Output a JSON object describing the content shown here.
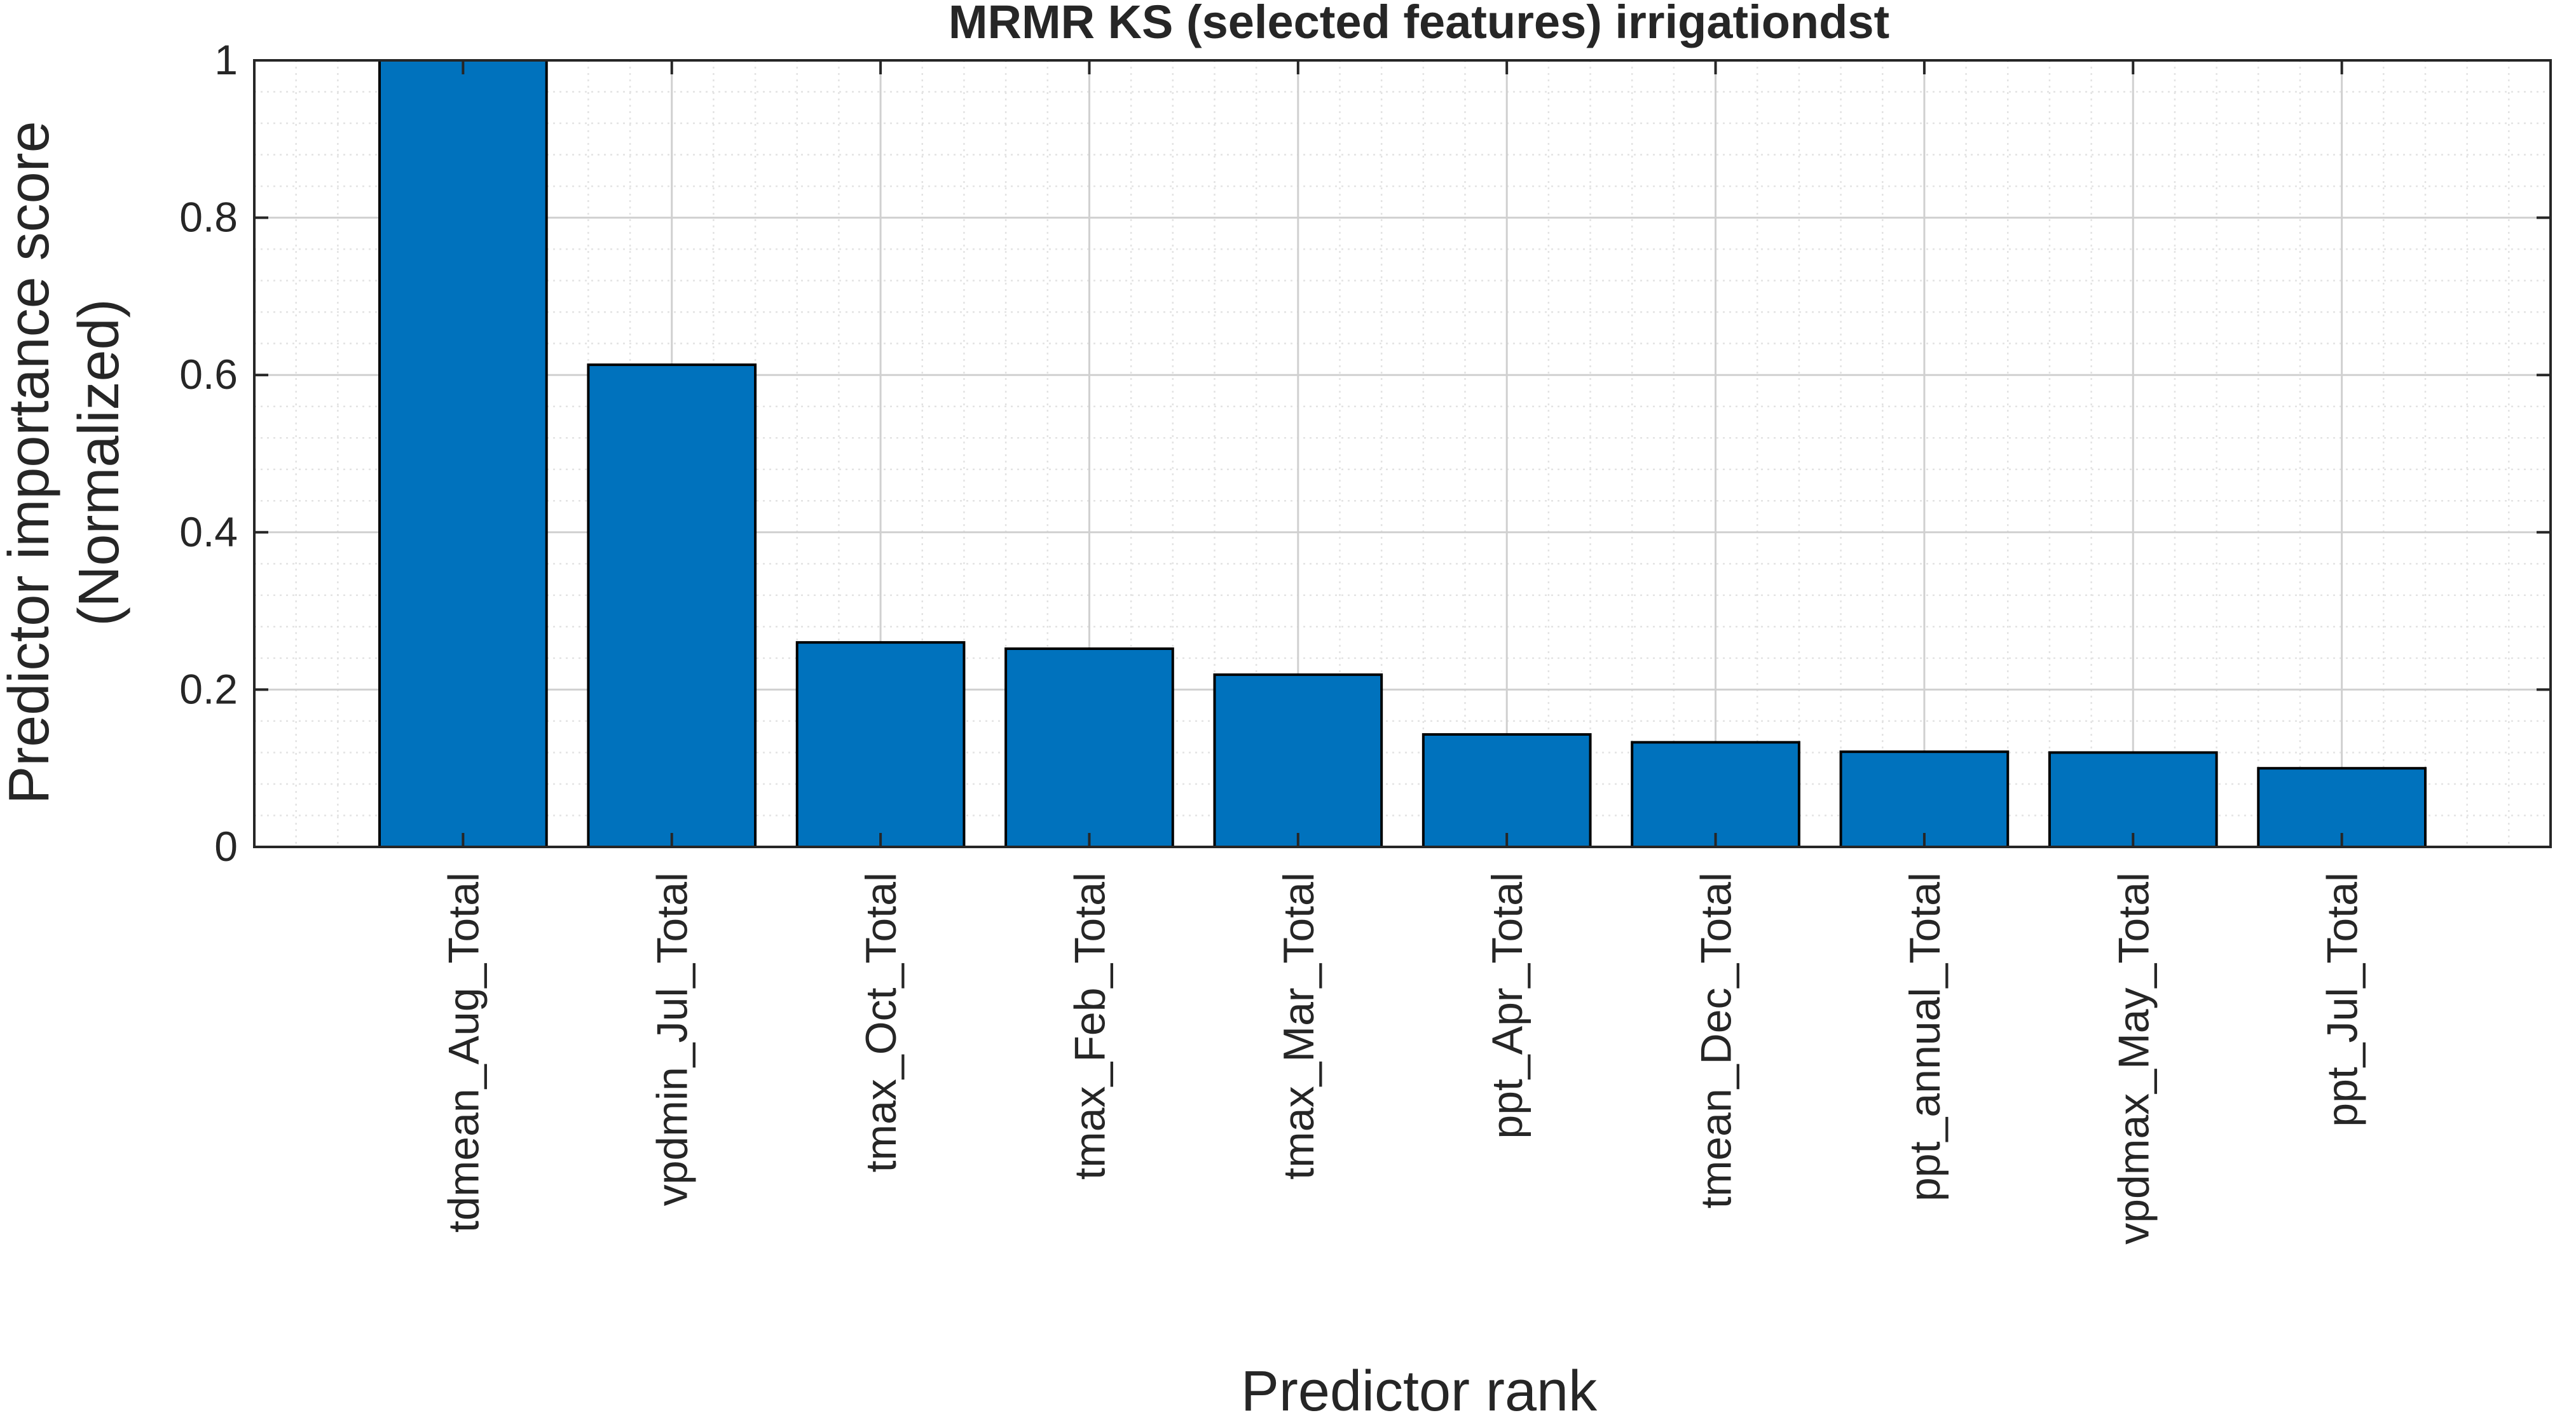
{
  "chart_data": {
    "type": "bar",
    "title": "MRMR KS (selected features) irrigationdst",
    "xlabel": "Predictor rank",
    "ylabel_line1": "Predictor importance score",
    "ylabel_line2": "(Normalized)",
    "categories": [
      "tdmean_Aug_Total",
      "vpdmin_Jul_Total",
      "tmax_Oct_Total",
      "tmax_Feb_Total",
      "tmax_Mar_Total",
      "ppt_Apr_Total",
      "tmean_Dec_Total",
      "ppt_annual_Total",
      "vpdmax_May_Total",
      "ppt_Jul_Total"
    ],
    "values": [
      1.0,
      0.613,
      0.26,
      0.252,
      0.219,
      0.143,
      0.133,
      0.121,
      0.12,
      0.1
    ],
    "xlim": [
      0,
      11
    ],
    "ylim": [
      0,
      1
    ],
    "yticks": [
      0,
      0.2,
      0.4,
      0.6,
      0.8,
      1
    ],
    "ytick_labels": [
      "0",
      "0.2",
      "0.4",
      "0.6",
      "0.8",
      "1"
    ],
    "grid": true,
    "minor_grid": true,
    "colors": {
      "bar": "#0072BD",
      "bar_edge": "#000000",
      "axis": "#262626",
      "grid": "#d0d0d0",
      "minor_grid": "#e3e3e3"
    }
  }
}
